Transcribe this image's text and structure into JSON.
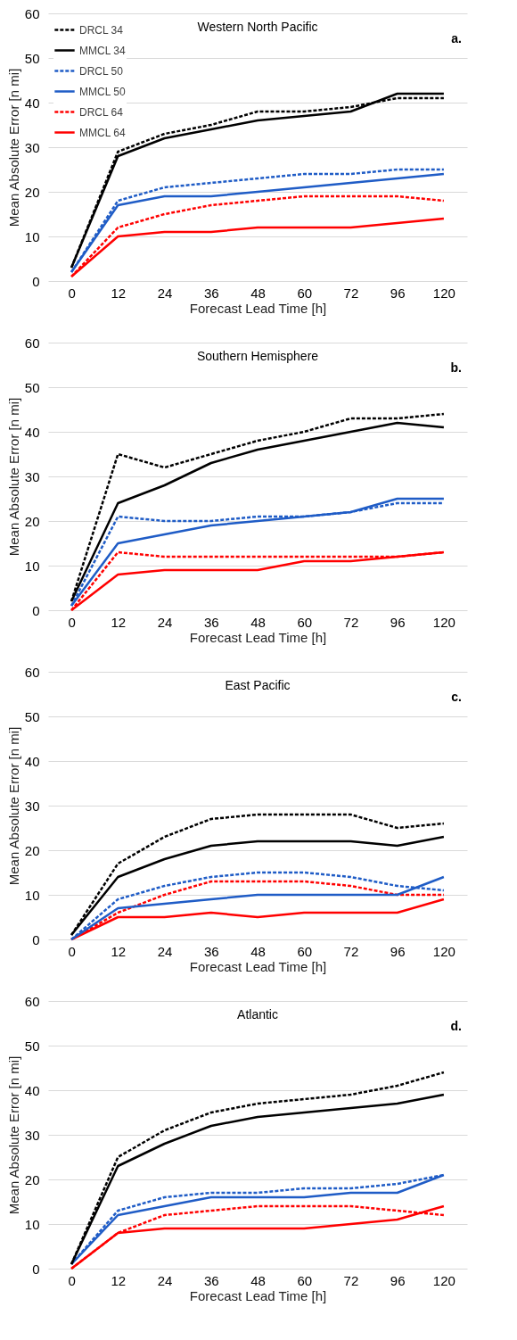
{
  "chart_data": [
    {
      "type": "line",
      "title": "Western North Pacific",
      "annotations": [
        "a."
      ],
      "xlabel": "Forecast Lead Time [h]",
      "ylabel": "Mean Absolute Error [n mi]",
      "categories": [
        "0",
        "12",
        "24",
        "36",
        "48",
        "60",
        "72",
        "96",
        "120"
      ],
      "ylim": [
        0,
        60
      ],
      "yticks": [
        0,
        10,
        20,
        30,
        40,
        50,
        60
      ],
      "grid": "y",
      "legend": "top left",
      "series": [
        {
          "name": "DRCL 34",
          "color": "#000000",
          "line_style": "dashed",
          "values": [
            3,
            29,
            33,
            35,
            38,
            38,
            39,
            41,
            41
          ]
        },
        {
          "name": "MMCL 34",
          "color": "#000000",
          "line_style": "solid",
          "values": [
            3,
            28,
            32,
            34,
            36,
            37,
            38,
            42,
            42
          ]
        },
        {
          "name": "DRCL 50",
          "color": "#1f5cc6",
          "line_style": "dashed",
          "values": [
            2,
            18,
            21,
            22,
            23,
            24,
            24,
            25,
            25
          ]
        },
        {
          "name": "MMCL 50",
          "color": "#1f5cc6",
          "line_style": "solid",
          "values": [
            2,
            17,
            19,
            19,
            20,
            21,
            22,
            23,
            24
          ]
        },
        {
          "name": "DRCL 64",
          "color": "#ff0000",
          "line_style": "dashed",
          "values": [
            1,
            12,
            15,
            17,
            18,
            19,
            19,
            19,
            18
          ]
        },
        {
          "name": "MMCL 64",
          "color": "#ff0000",
          "line_style": "solid",
          "values": [
            1,
            10,
            11,
            11,
            12,
            12,
            12,
            13,
            14
          ]
        }
      ]
    },
    {
      "type": "line",
      "title": "Southern Hemisphere",
      "annotations": [
        "b."
      ],
      "xlabel": "Forecast Lead Time [h]",
      "ylabel": "Mean Absolute Error [n mi]",
      "categories": [
        "0",
        "12",
        "24",
        "36",
        "48",
        "60",
        "72",
        "96",
        "120"
      ],
      "ylim": [
        0,
        60
      ],
      "yticks": [
        0,
        10,
        20,
        30,
        40,
        50,
        60
      ],
      "grid": "y",
      "legend": "top left",
      "series": [
        {
          "name": "DRCL 34",
          "color": "#000000",
          "line_style": "dashed",
          "values": [
            2,
            35,
            32,
            35,
            38,
            40,
            43,
            43,
            44
          ]
        },
        {
          "name": "MMCL 34",
          "color": "#000000",
          "line_style": "solid",
          "values": [
            2,
            24,
            28,
            33,
            36,
            38,
            40,
            42,
            41
          ]
        },
        {
          "name": "DRCL 50",
          "color": "#1f5cc6",
          "line_style": "dashed",
          "values": [
            1,
            21,
            20,
            20,
            21,
            21,
            22,
            24,
            24
          ]
        },
        {
          "name": "MMCL 50",
          "color": "#1f5cc6",
          "line_style": "solid",
          "values": [
            1,
            15,
            17,
            19,
            20,
            21,
            22,
            25,
            25
          ]
        },
        {
          "name": "DRCL 64",
          "color": "#ff0000",
          "line_style": "dashed",
          "values": [
            0,
            13,
            12,
            12,
            12,
            12,
            12,
            12,
            13
          ]
        },
        {
          "name": "MMCL 64",
          "color": "#ff0000",
          "line_style": "solid",
          "values": [
            0,
            8,
            9,
            9,
            9,
            11,
            11,
            12,
            13
          ]
        }
      ]
    },
    {
      "type": "line",
      "title": "East Pacific",
      "annotations": [
        "c."
      ],
      "xlabel": "Forecast Lead Time [h]",
      "ylabel": "Mean Absolute Error [n mi]",
      "categories": [
        "0",
        "12",
        "24",
        "36",
        "48",
        "60",
        "72",
        "96",
        "120"
      ],
      "ylim": [
        0,
        60
      ],
      "yticks": [
        0,
        10,
        20,
        30,
        40,
        50,
        60
      ],
      "grid": "y",
      "legend": "top left",
      "series": [
        {
          "name": "DRCL 34",
          "color": "#000000",
          "line_style": "dashed",
          "values": [
            1,
            17,
            23,
            27,
            28,
            28,
            28,
            25,
            26
          ]
        },
        {
          "name": "MMCL 34",
          "color": "#000000",
          "line_style": "solid",
          "values": [
            1,
            14,
            18,
            21,
            22,
            22,
            22,
            21,
            23
          ]
        },
        {
          "name": "DRCL 50",
          "color": "#1f5cc6",
          "line_style": "dashed",
          "values": [
            0,
            9,
            12,
            14,
            15,
            15,
            14,
            12,
            11
          ]
        },
        {
          "name": "MMCL 50",
          "color": "#1f5cc6",
          "line_style": "solid",
          "values": [
            0,
            7,
            8,
            9,
            10,
            10,
            10,
            10,
            14
          ]
        },
        {
          "name": "DRCL 64",
          "color": "#ff0000",
          "line_style": "dashed",
          "values": [
            0,
            6,
            10,
            13,
            13,
            13,
            12,
            10,
            10
          ]
        },
        {
          "name": "MMCL 64",
          "color": "#ff0000",
          "line_style": "solid",
          "values": [
            0,
            5,
            5,
            6,
            5,
            6,
            6,
            6,
            9
          ]
        }
      ]
    },
    {
      "type": "line",
      "title": "Atlantic",
      "annotations": [
        "d."
      ],
      "xlabel": "Forecast Lead Time [h]",
      "ylabel": "Mean Absolute Error [n mi]",
      "categories": [
        "0",
        "12",
        "24",
        "36",
        "48",
        "60",
        "72",
        "96",
        "120"
      ],
      "ylim": [
        0,
        60
      ],
      "yticks": [
        0,
        10,
        20,
        30,
        40,
        50,
        60
      ],
      "grid": "y",
      "legend": "top left",
      "series": [
        {
          "name": "DRCL 34",
          "color": "#000000",
          "line_style": "dashed",
          "values": [
            1,
            25,
            31,
            35,
            37,
            38,
            39,
            41,
            44
          ]
        },
        {
          "name": "MMCL 34",
          "color": "#000000",
          "line_style": "solid",
          "values": [
            1,
            23,
            28,
            32,
            34,
            35,
            36,
            37,
            39
          ]
        },
        {
          "name": "DRCL 50",
          "color": "#1f5cc6",
          "line_style": "dashed",
          "values": [
            1,
            13,
            16,
            17,
            17,
            18,
            18,
            19,
            21
          ]
        },
        {
          "name": "MMCL 50",
          "color": "#1f5cc6",
          "line_style": "solid",
          "values": [
            1,
            12,
            14,
            16,
            16,
            16,
            17,
            17,
            21
          ]
        },
        {
          "name": "DRCL 64",
          "color": "#ff0000",
          "line_style": "dashed",
          "values": [
            0,
            8,
            12,
            13,
            14,
            14,
            14,
            13,
            12
          ]
        },
        {
          "name": "MMCL 64",
          "color": "#ff0000",
          "line_style": "solid",
          "values": [
            0,
            8,
            9,
            9,
            9,
            9,
            10,
            11,
            14
          ]
        }
      ]
    }
  ]
}
